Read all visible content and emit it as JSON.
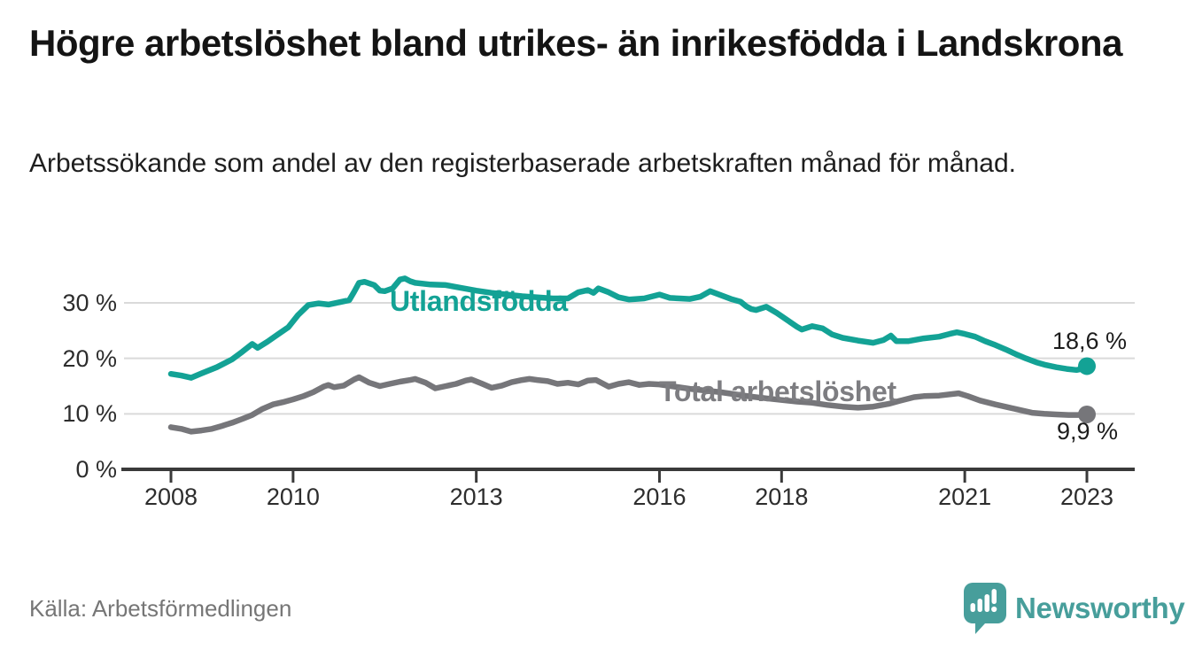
{
  "chart_data": {
    "type": "line",
    "title": "Högre arbetslöshet bland utrikes- än inrikesfödda i Landskrona",
    "subtitle": "Arbetssökande som andel av den registerbaserade arbetskraften månad för månad.",
    "source": "Källa: Arbetsförmedlingen",
    "unit": "%",
    "grid": "horizontal-only",
    "legend": "inline-series-labels",
    "x_axis": {
      "range": [
        2007.25,
        2023.75
      ],
      "ticks": [
        {
          "year": 2008,
          "label": "2008"
        },
        {
          "year": 2010,
          "label": "2010"
        },
        {
          "year": 2013,
          "label": "2013"
        },
        {
          "year": 2016,
          "label": "2016"
        },
        {
          "year": 2018,
          "label": "2018"
        },
        {
          "year": 2021,
          "label": "2021"
        },
        {
          "year": 2023,
          "label": "2023"
        }
      ]
    },
    "y_axis": {
      "range": [
        0,
        36
      ],
      "ticks": [
        {
          "value": 30,
          "label": "30 %"
        },
        {
          "value": 20,
          "label": "20 %"
        },
        {
          "value": 10,
          "label": "10 %"
        },
        {
          "value": 0,
          "label": "0 %"
        }
      ]
    },
    "series": [
      {
        "name": "Utlandsfödda",
        "color": "#13a295",
        "end_label": "18,6 %",
        "end_value": 18.6,
        "points": [
          [
            2008.0,
            17.2
          ],
          [
            2008.17,
            16.9
          ],
          [
            2008.33,
            16.5
          ],
          [
            2008.5,
            17.3
          ],
          [
            2008.75,
            18.4
          ],
          [
            2009.0,
            19.8
          ],
          [
            2009.17,
            21.2
          ],
          [
            2009.33,
            22.6
          ],
          [
            2009.42,
            21.9
          ],
          [
            2009.58,
            23.0
          ],
          [
            2009.75,
            24.3
          ],
          [
            2009.92,
            25.6
          ],
          [
            2010.08,
            27.8
          ],
          [
            2010.25,
            29.6
          ],
          [
            2010.42,
            29.9
          ],
          [
            2010.58,
            29.7
          ],
          [
            2010.75,
            30.1
          ],
          [
            2010.92,
            30.5
          ],
          [
            2011.0,
            32.0
          ],
          [
            2011.08,
            33.6
          ],
          [
            2011.17,
            33.8
          ],
          [
            2011.33,
            33.2
          ],
          [
            2011.42,
            32.2
          ],
          [
            2011.5,
            32.1
          ],
          [
            2011.63,
            32.6
          ],
          [
            2011.75,
            34.2
          ],
          [
            2011.83,
            34.4
          ],
          [
            2011.92,
            33.9
          ],
          [
            2012.0,
            33.6
          ],
          [
            2012.25,
            33.3
          ],
          [
            2012.5,
            33.2
          ],
          [
            2012.75,
            32.7
          ],
          [
            2013.0,
            32.2
          ],
          [
            2013.25,
            31.8
          ],
          [
            2013.5,
            31.5
          ],
          [
            2013.75,
            31.2
          ],
          [
            2014.0,
            31.0
          ],
          [
            2014.25,
            30.8
          ],
          [
            2014.5,
            30.8
          ],
          [
            2014.67,
            31.9
          ],
          [
            2014.83,
            32.3
          ],
          [
            2014.92,
            31.8
          ],
          [
            2015.0,
            32.6
          ],
          [
            2015.17,
            31.9
          ],
          [
            2015.33,
            31.0
          ],
          [
            2015.5,
            30.6
          ],
          [
            2015.75,
            30.8
          ],
          [
            2016.0,
            31.5
          ],
          [
            2016.17,
            30.9
          ],
          [
            2016.33,
            30.8
          ],
          [
            2016.5,
            30.7
          ],
          [
            2016.67,
            31.1
          ],
          [
            2016.83,
            32.1
          ],
          [
            2017.0,
            31.4
          ],
          [
            2017.17,
            30.7
          ],
          [
            2017.33,
            30.2
          ],
          [
            2017.42,
            29.4
          ],
          [
            2017.5,
            28.9
          ],
          [
            2017.58,
            28.7
          ],
          [
            2017.75,
            29.3
          ],
          [
            2017.92,
            28.2
          ],
          [
            2018.08,
            27.0
          ],
          [
            2018.25,
            25.7
          ],
          [
            2018.33,
            25.2
          ],
          [
            2018.5,
            25.8
          ],
          [
            2018.67,
            25.4
          ],
          [
            2018.83,
            24.3
          ],
          [
            2019.0,
            23.7
          ],
          [
            2019.25,
            23.2
          ],
          [
            2019.5,
            22.8
          ],
          [
            2019.67,
            23.3
          ],
          [
            2019.79,
            24.1
          ],
          [
            2019.88,
            23.1
          ],
          [
            2020.08,
            23.1
          ],
          [
            2020.33,
            23.6
          ],
          [
            2020.58,
            23.9
          ],
          [
            2020.75,
            24.4
          ],
          [
            2020.87,
            24.7
          ],
          [
            2021.0,
            24.4
          ],
          [
            2021.17,
            23.9
          ],
          [
            2021.33,
            23.1
          ],
          [
            2021.5,
            22.4
          ],
          [
            2021.67,
            21.6
          ],
          [
            2021.83,
            20.8
          ],
          [
            2022.0,
            20.0
          ],
          [
            2022.17,
            19.3
          ],
          [
            2022.33,
            18.8
          ],
          [
            2022.5,
            18.4
          ],
          [
            2022.67,
            18.1
          ],
          [
            2022.83,
            17.9
          ],
          [
            2022.92,
            18.1
          ],
          [
            2023.0,
            18.6
          ]
        ]
      },
      {
        "name": "Total arbetslöshet",
        "color": "#76767a",
        "label_color": "#7d7d81",
        "end_label": "9,9 %",
        "end_value": 9.9,
        "points": [
          [
            2008.0,
            7.6
          ],
          [
            2008.17,
            7.3
          ],
          [
            2008.33,
            6.8
          ],
          [
            2008.5,
            7.0
          ],
          [
            2008.67,
            7.3
          ],
          [
            2008.83,
            7.8
          ],
          [
            2009.0,
            8.4
          ],
          [
            2009.17,
            9.1
          ],
          [
            2009.33,
            9.8
          ],
          [
            2009.5,
            10.9
          ],
          [
            2009.67,
            11.7
          ],
          [
            2009.83,
            12.1
          ],
          [
            2010.0,
            12.6
          ],
          [
            2010.17,
            13.2
          ],
          [
            2010.33,
            13.9
          ],
          [
            2010.5,
            14.9
          ],
          [
            2010.58,
            15.2
          ],
          [
            2010.67,
            14.8
          ],
          [
            2010.83,
            15.1
          ],
          [
            2011.0,
            16.2
          ],
          [
            2011.08,
            16.6
          ],
          [
            2011.25,
            15.6
          ],
          [
            2011.42,
            15.0
          ],
          [
            2011.58,
            15.4
          ],
          [
            2011.75,
            15.8
          ],
          [
            2011.92,
            16.1
          ],
          [
            2012.0,
            16.3
          ],
          [
            2012.17,
            15.6
          ],
          [
            2012.33,
            14.6
          ],
          [
            2012.5,
            15.0
          ],
          [
            2012.67,
            15.4
          ],
          [
            2012.83,
            16.0
          ],
          [
            2012.92,
            16.2
          ],
          [
            2013.08,
            15.5
          ],
          [
            2013.25,
            14.7
          ],
          [
            2013.42,
            15.1
          ],
          [
            2013.58,
            15.7
          ],
          [
            2013.75,
            16.1
          ],
          [
            2013.87,
            16.3
          ],
          [
            2014.0,
            16.1
          ],
          [
            2014.17,
            15.9
          ],
          [
            2014.33,
            15.4
          ],
          [
            2014.5,
            15.6
          ],
          [
            2014.67,
            15.3
          ],
          [
            2014.83,
            16.0
          ],
          [
            2014.96,
            16.1
          ],
          [
            2015.17,
            14.9
          ],
          [
            2015.33,
            15.4
          ],
          [
            2015.5,
            15.7
          ],
          [
            2015.67,
            15.2
          ],
          [
            2015.83,
            15.4
          ],
          [
            2016.0,
            15.3
          ],
          [
            2016.25,
            14.9
          ],
          [
            2016.5,
            14.5
          ],
          [
            2016.75,
            14.2
          ],
          [
            2017.0,
            13.9
          ],
          [
            2017.25,
            13.5
          ],
          [
            2017.5,
            13.1
          ],
          [
            2017.75,
            12.8
          ],
          [
            2018.0,
            12.5
          ],
          [
            2018.25,
            12.2
          ],
          [
            2018.5,
            12.0
          ],
          [
            2018.75,
            11.6
          ],
          [
            2019.0,
            11.3
          ],
          [
            2019.25,
            11.1
          ],
          [
            2019.5,
            11.3
          ],
          [
            2019.75,
            11.8
          ],
          [
            2019.92,
            12.3
          ],
          [
            2020.17,
            13.0
          ],
          [
            2020.33,
            13.2
          ],
          [
            2020.58,
            13.3
          ],
          [
            2020.9,
            13.7
          ],
          [
            2021.05,
            13.2
          ],
          [
            2021.25,
            12.4
          ],
          [
            2021.5,
            11.7
          ],
          [
            2021.7,
            11.2
          ],
          [
            2021.9,
            10.7
          ],
          [
            2022.1,
            10.2
          ],
          [
            2022.3,
            10.0
          ],
          [
            2022.5,
            9.9
          ],
          [
            2022.7,
            9.8
          ],
          [
            2022.85,
            9.8
          ],
          [
            2023.0,
            9.9
          ]
        ]
      }
    ]
  },
  "footer": {
    "brand": "Newsworthy",
    "brand_color": "#479e9b",
    "logo_icon": "newsworthy-speech-bubble-bar-chart-icon"
  }
}
